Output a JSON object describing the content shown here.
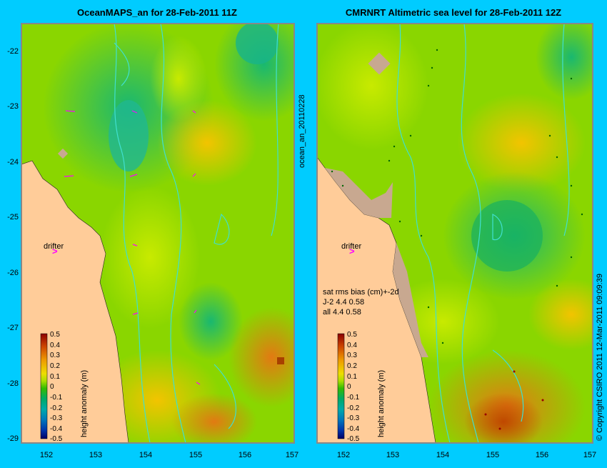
{
  "left_panel": {
    "title": "OceanMAPS_an for 28-Feb-2011 11Z",
    "side_label": "ocean_an_20110228",
    "drifter_label": "drifter",
    "colorbar_label": "height anomaly (m)"
  },
  "right_panel": {
    "title": "CMRNRT Altimetric sea level  for 28-Feb-2011 12Z",
    "drifter_label": "drifter",
    "colorbar_label": "height anomaly (m)",
    "stats": {
      "header": "sat rms bias (cm)+-2d",
      "row1": "J-2   4.4  0.58",
      "row2": "all 4.4  0.58"
    }
  },
  "copyright": "© Copyright CSIRO 2011   12-Mar-2011 09:09:39",
  "axes": {
    "lon_ticks": [
      "152",
      "153",
      "154",
      "155",
      "156",
      "157"
    ],
    "lat_ticks": [
      "-22",
      "-23",
      "-24",
      "-25",
      "-26",
      "-27",
      "-28",
      "-29"
    ]
  },
  "colorbar_ticks": [
    "0.5",
    "0.4",
    "0.3",
    "0.2",
    "0.1",
    "0",
    "-0.1",
    "-0.2",
    "-0.3",
    "-0.4",
    "-0.5"
  ],
  "colors": {
    "background": "#00ccff",
    "land": "#ffcc99",
    "contour": "#40e0d0",
    "drifter": "#ff00ff"
  }
}
